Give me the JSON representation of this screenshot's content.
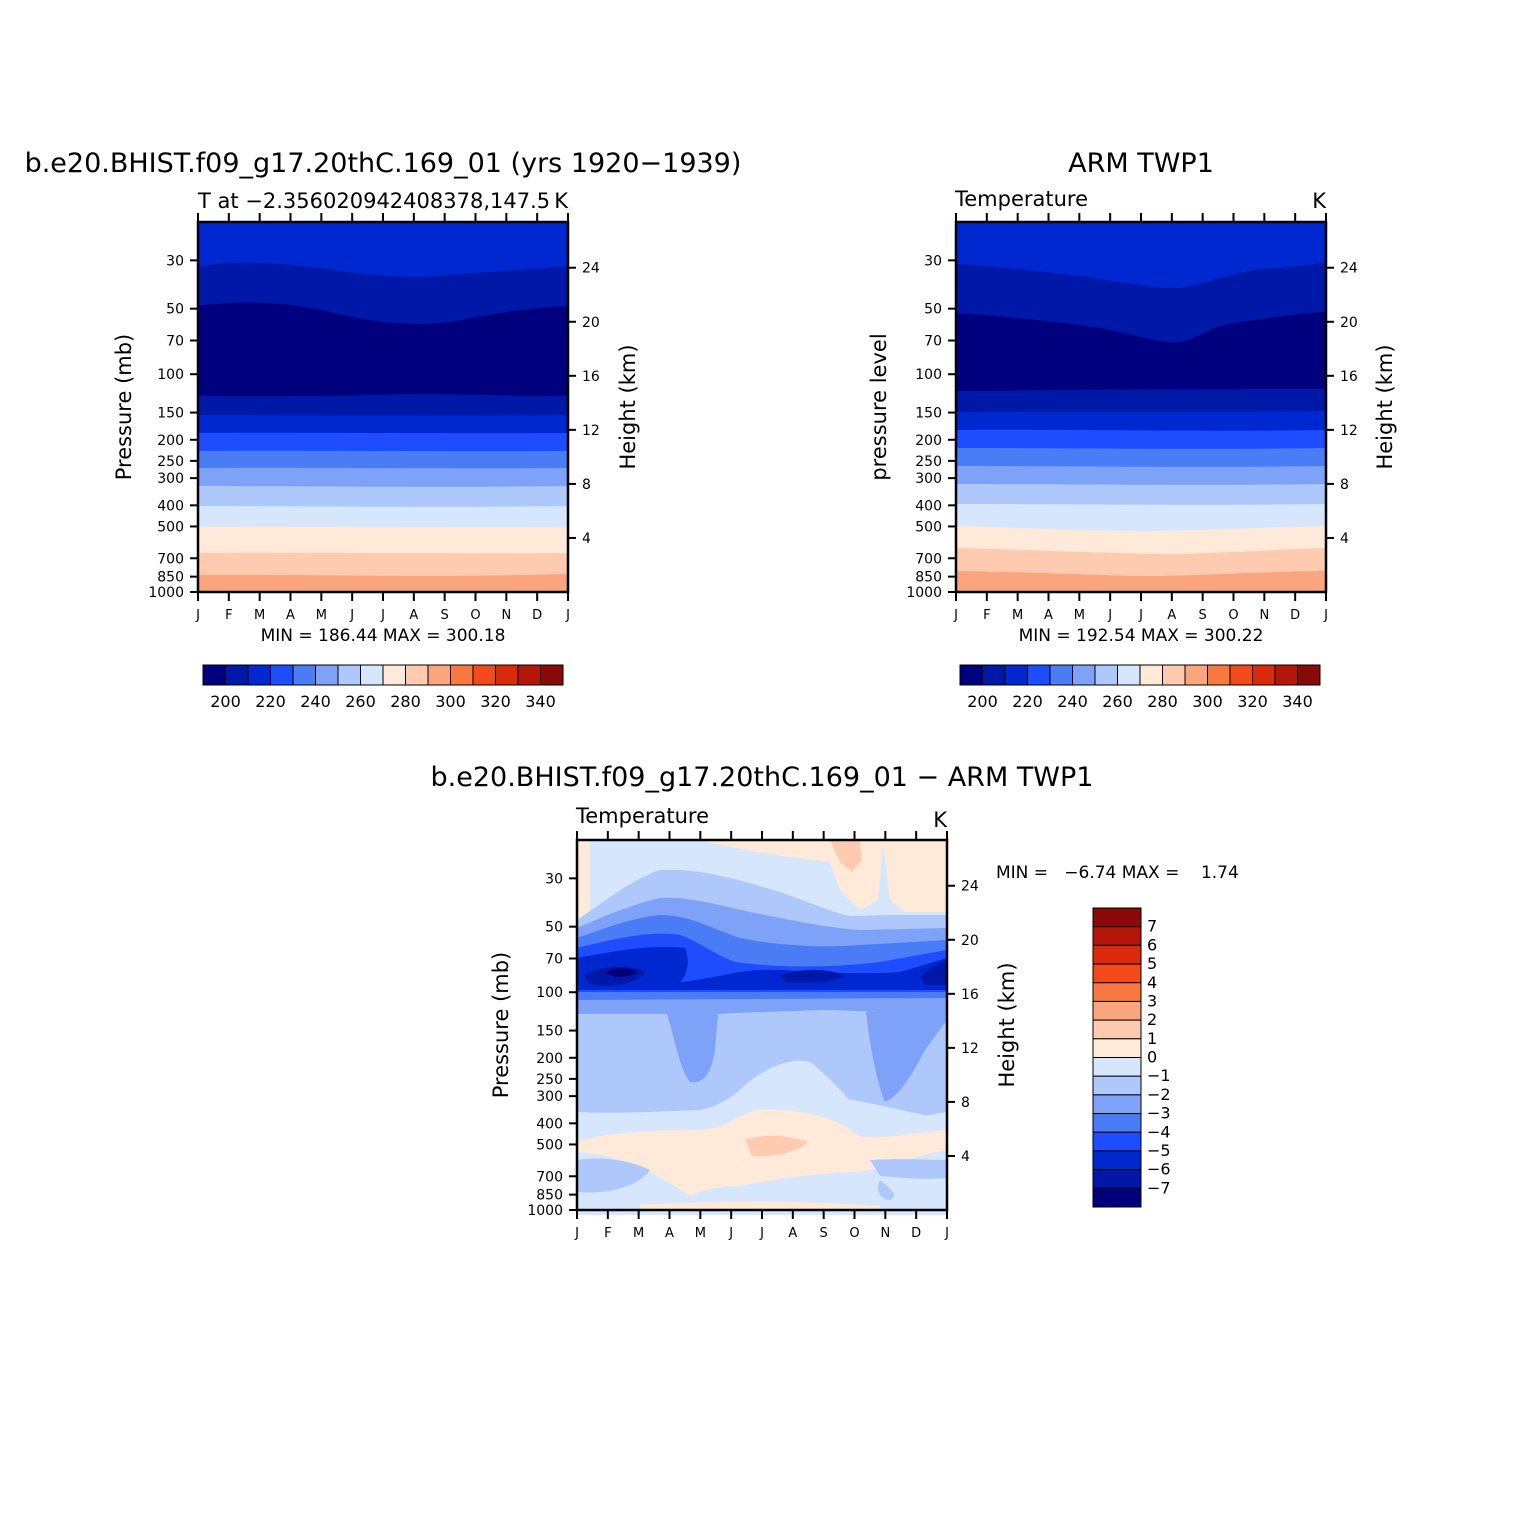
{
  "panels": [
    {
      "main_title": "b.e20.BHIST.f09_g17.20thC.169_01 (yrs 1920−1939)",
      "left_subtitle": "T at −2.356020942408378,147.5",
      "right_subtitle": "K",
      "left_axis_label": "Pressure (mb)",
      "right_axis_label": "Height (km)",
      "minmax_text": "MIN = 186.44 MAX = 300.18"
    },
    {
      "main_title": "ARM TWP1",
      "left_subtitle": "Temperature",
      "right_subtitle": "K",
      "left_axis_label": "pressure level",
      "right_axis_label": "Height (km)",
      "minmax_text": "MIN = 192.54 MAX = 300.22"
    },
    {
      "main_title": "b.e20.BHIST.f09_g17.20thC.169_01 − ARM TWP1",
      "left_subtitle": "Temperature",
      "right_subtitle": "K",
      "left_axis_label": "Pressure (mb)",
      "right_axis_label": "Height (km)",
      "minmax_text": "MIN =   −6.74 MAX =    1.74"
    }
  ],
  "colors": {
    "temp_scale": [
      "#00007f",
      "#0018a8",
      "#0028d0",
      "#1e4cff",
      "#4a7cf5",
      "#7ea2f7",
      "#afc8fb",
      "#d6e7fd",
      "#ffe9d8",
      "#fecbb0",
      "#fba57f",
      "#f9783f",
      "#f24a1a",
      "#d92b0c",
      "#b4170a",
      "#8a0a0a"
    ],
    "diff_scale": [
      "#00007f",
      "#0018a8",
      "#0028d0",
      "#1e4cff",
      "#4a7cf5",
      "#7ea2f7",
      "#afc8fb",
      "#d6e7fd",
      "#ffe9d8",
      "#fecbb0",
      "#fba57f",
      "#f9783f",
      "#f24a1a",
      "#d92b0c",
      "#b4170a",
      "#8a0a0a"
    ]
  },
  "chart_data": [
    {
      "type": "contour",
      "title": "b.e20.BHIST.f09_g17.20thC.169_01 (yrs 1920−1939)",
      "x_ticks": [
        "J",
        "F",
        "M",
        "A",
        "M",
        "J",
        "J",
        "A",
        "S",
        "O",
        "N",
        "D",
        "J"
      ],
      "y_ticks": [
        30,
        50,
        70,
        100,
        150,
        200,
        250,
        300,
        400,
        500,
        700,
        850,
        1000
      ],
      "ylim": [
        1000,
        20
      ],
      "y_scale": "log",
      "height_ticks": [
        24,
        20,
        16,
        12,
        8,
        4
      ],
      "colorbar_labels": [
        200,
        220,
        240,
        260,
        280,
        300,
        320,
        340
      ],
      "min": 186.44,
      "max": 300.18,
      "bands": [
        {
          "level": "below 210",
          "color_index": 0,
          "top_p": [
            58,
            56,
            57,
            62,
            66,
            66,
            66,
            62,
            59,
            57
          ]
        },
        {
          "level": "210-220",
          "color_index": 1,
          "top_p": [
            37,
            36,
            36,
            39,
            40,
            40,
            40,
            38,
            37,
            36
          ]
        },
        {
          "level": "220-230",
          "color_index": 2,
          "top_p": [
            20,
            20,
            20,
            20,
            20,
            20,
            20,
            20,
            20,
            20
          ]
        }
      ]
    },
    {
      "type": "contour",
      "title": "ARM TWP1",
      "x_ticks": [
        "J",
        "F",
        "M",
        "A",
        "M",
        "J",
        "J",
        "A",
        "S",
        "O",
        "N",
        "D",
        "J"
      ],
      "y_ticks": [
        30,
        50,
        70,
        100,
        150,
        200,
        250,
        300,
        400,
        500,
        700,
        850,
        1000
      ],
      "ylim": [
        1000,
        20
      ],
      "y_scale": "log",
      "height_ticks": [
        24,
        20,
        16,
        12,
        8,
        4
      ],
      "colorbar_labels": [
        200,
        220,
        240,
        260,
        280,
        300,
        320,
        340
      ],
      "min": 192.54,
      "max": 300.22
    },
    {
      "type": "contour",
      "title": "b.e20.BHIST.f09_g17.20thC.169_01 − ARM TWP1",
      "x_ticks": [
        "J",
        "F",
        "M",
        "A",
        "M",
        "J",
        "J",
        "A",
        "S",
        "O",
        "N",
        "D",
        "J"
      ],
      "y_ticks": [
        30,
        50,
        70,
        100,
        150,
        200,
        250,
        300,
        400,
        500,
        700,
        850,
        1000
      ],
      "ylim": [
        1000,
        20
      ],
      "y_scale": "log",
      "height_ticks": [
        24,
        20,
        16,
        12,
        8,
        4
      ],
      "colorbar_labels": [
        7,
        6,
        5,
        4,
        3,
        2,
        1,
        0,
        -1,
        -2,
        -3,
        -4,
        -5,
        -6,
        -7
      ],
      "min": -6.74,
      "max": 1.74
    }
  ]
}
